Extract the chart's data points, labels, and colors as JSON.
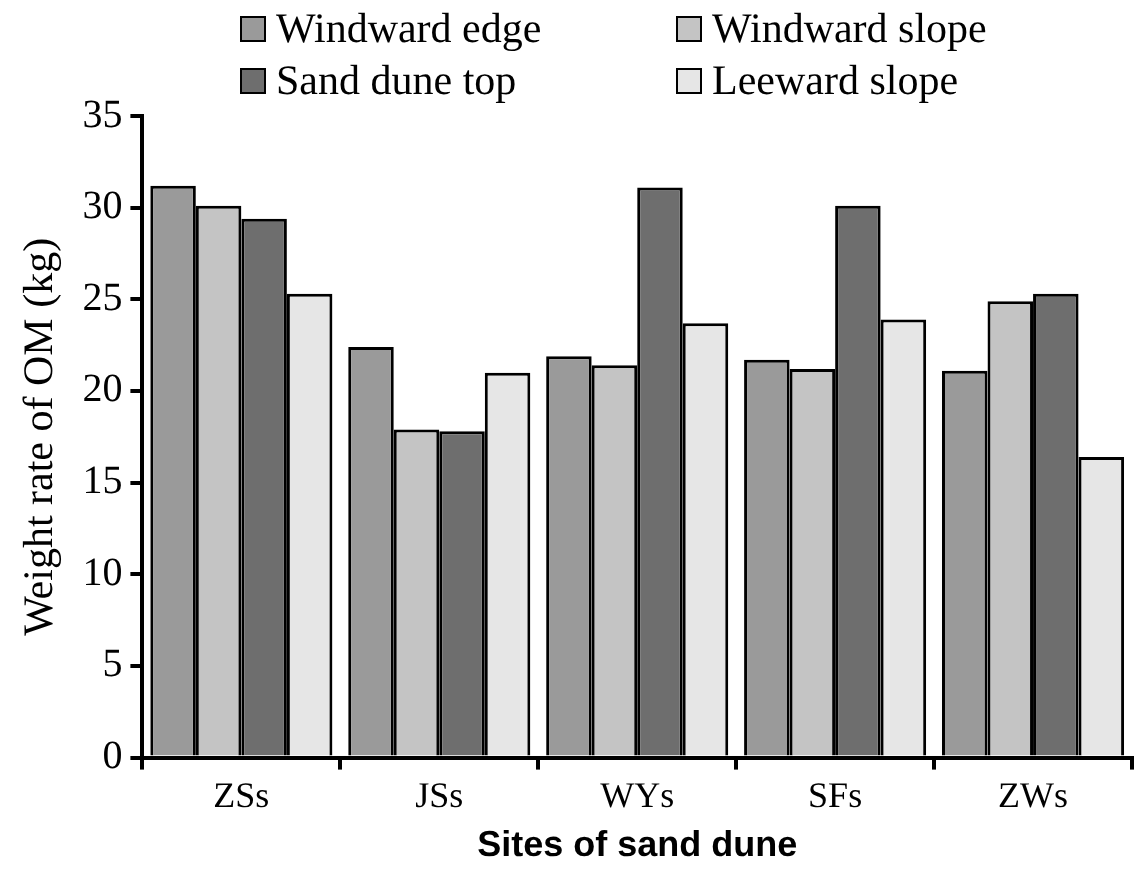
{
  "chart_data": {
    "type": "bar",
    "xlabel": "Sites of sand dune",
    "ylabel": "Weight rate of OM (kg)",
    "categories": [
      "ZSs",
      "JSs",
      "WYs",
      "SFs",
      "ZWs"
    ],
    "series": [
      {
        "name": "Windward edge",
        "color": "#9a9a9a",
        "values": [
          31.2,
          22.4,
          21.9,
          21.7,
          21.1
        ]
      },
      {
        "name": "Windward slope",
        "color": "#c4c4c4",
        "values": [
          30.1,
          17.9,
          21.4,
          21.2,
          24.9
        ]
      },
      {
        "name": "Sand dune top",
        "color": "#6e6e6e",
        "values": [
          29.4,
          17.8,
          31.1,
          30.1,
          25.3
        ]
      },
      {
        "name": "Leeward slope",
        "color": "#e6e6e6",
        "values": [
          25.3,
          21.0,
          23.7,
          23.9,
          16.4
        ]
      }
    ],
    "ylim": [
      0,
      35
    ],
    "yticks": [
      0,
      5,
      10,
      15,
      20,
      25,
      30,
      35
    ],
    "grid": false,
    "legend": "top"
  }
}
